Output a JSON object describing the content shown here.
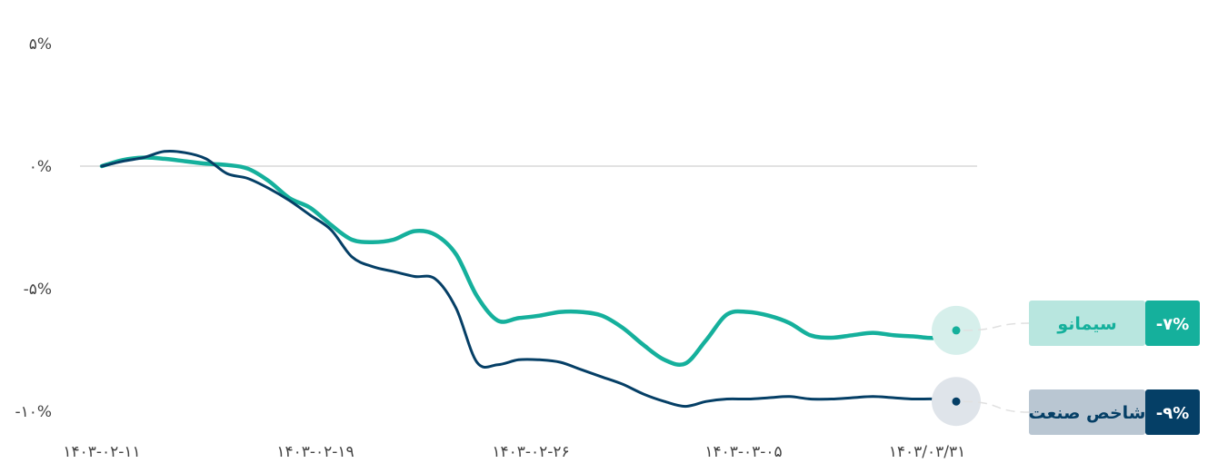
{
  "chart_data": {
    "type": "line",
    "title": "",
    "xlabel": "",
    "ylabel": "",
    "x_ticks": [
      "۱۴۰۳-۰۲-۱۱",
      "۱۴۰۳-۰۲-۱۹",
      "۱۴۰۳-۰۲-۲۶",
      "۱۴۰۳-۰۳-۰۵",
      "۱۴۰۳/۰۳/۳۱"
    ],
    "y_ticks": [
      "۵%",
      "۰%",
      "-۵%",
      "-۱۰%"
    ],
    "y_tick_values": [
      5,
      0,
      -5,
      -10
    ],
    "ylim": [
      -11,
      6
    ],
    "grid": false,
    "zero_line": true,
    "x": [
      0,
      1,
      2,
      3,
      4,
      5,
      6,
      7,
      8,
      9,
      10,
      11,
      12,
      13,
      14,
      15,
      16,
      17,
      18,
      19,
      20,
      21,
      22,
      23,
      24,
      25,
      26,
      27,
      28,
      29,
      30,
      31,
      32,
      33,
      34,
      35,
      36,
      37,
      38,
      39,
      40,
      41
    ],
    "series": [
      {
        "name": "سیمانو",
        "color": "#15b09c",
        "end_label": "-۷%",
        "values": [
          0,
          0.25,
          0.35,
          0.3,
          0.2,
          0.1,
          0.05,
          -0.1,
          -0.6,
          -1.3,
          -1.7,
          -2.4,
          -3.0,
          -3.1,
          -3.0,
          -2.65,
          -2.8,
          -3.6,
          -5.3,
          -6.3,
          -6.2,
          -6.1,
          -5.95,
          -5.95,
          -6.1,
          -6.6,
          -7.3,
          -7.9,
          -8.05,
          -7.1,
          -6.05,
          -5.95,
          -6.1,
          -6.4,
          -6.9,
          -7.0,
          -6.9,
          -6.8,
          -6.9,
          -6.95,
          -7.0,
          -6.7
        ]
      },
      {
        "name": "شاخص صنعت",
        "color": "#053f66",
        "end_label": "-۹%",
        "values": [
          0,
          0.2,
          0.35,
          0.6,
          0.55,
          0.3,
          -0.3,
          -0.5,
          -0.9,
          -1.4,
          -2.0,
          -2.6,
          -3.7,
          -4.1,
          -4.3,
          -4.5,
          -4.6,
          -5.8,
          -8.0,
          -8.1,
          -7.9,
          -7.9,
          -8.0,
          -8.3,
          -8.6,
          -8.9,
          -9.3,
          -9.6,
          -9.8,
          -9.6,
          -9.5,
          -9.5,
          -9.45,
          -9.4,
          -9.5,
          -9.5,
          -9.45,
          -9.4,
          -9.45,
          -9.5,
          -9.5,
          -9.6
        ]
      }
    ]
  }
}
